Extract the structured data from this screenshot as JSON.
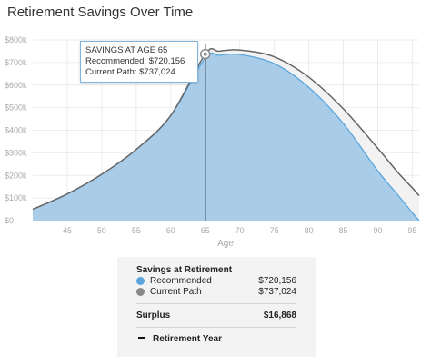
{
  "chart_data": {
    "type": "area",
    "title": "Retirement Savings Over Time",
    "xlabel": "Age",
    "ylabel": "",
    "xlim": [
      40,
      96
    ],
    "ylim": [
      0,
      800000
    ],
    "x_ticks": [
      45,
      50,
      55,
      60,
      65,
      70,
      75,
      80,
      85,
      90,
      95
    ],
    "y_ticks": [
      0,
      100000,
      200000,
      300000,
      400000,
      500000,
      600000,
      700000,
      800000
    ],
    "y_tick_labels": [
      "$0",
      "$100k",
      "$200k",
      "$300k",
      "$400k",
      "$500k",
      "$600k",
      "$700k",
      "$800k"
    ],
    "grid": true,
    "series": [
      {
        "name": "Recommended",
        "color": "#a9cde8",
        "x": [
          40,
          45,
          50,
          55,
          60,
          65,
          67,
          70,
          75,
          80,
          85,
          90,
          93,
          95,
          96
        ],
        "values": [
          50000,
          118000,
          205000,
          315000,
          465000,
          720156,
          732000,
          735000,
          695000,
          590000,
          430000,
          220000,
          110000,
          35000,
          0
        ]
      },
      {
        "name": "Current Path",
        "color": "#666666",
        "x": [
          40,
          45,
          50,
          55,
          60,
          65,
          67,
          70,
          75,
          80,
          85,
          90,
          93,
          95,
          96
        ],
        "values": [
          50000,
          118000,
          205000,
          315000,
          465000,
          737024,
          750000,
          755000,
          725000,
          635000,
          495000,
          320000,
          210000,
          145000,
          110000
        ]
      }
    ],
    "retirement_age": 65
  },
  "tooltip": {
    "heading": "SAVINGS AT AGE 65",
    "recommended": "Recommended: $720,156",
    "current": "Current Path: $737,024"
  },
  "summary": {
    "heading": "Savings at Retirement",
    "recommended_label": "Recommended",
    "recommended_value": "$720,156",
    "current_label": "Current Path",
    "current_value": "$737,024",
    "surplus_label": "Surplus",
    "surplus_value": "$16,868",
    "retirement_label": "Retirement Year",
    "recommended_color": "#5aa6dc",
    "current_color": "#8a8a8a"
  }
}
